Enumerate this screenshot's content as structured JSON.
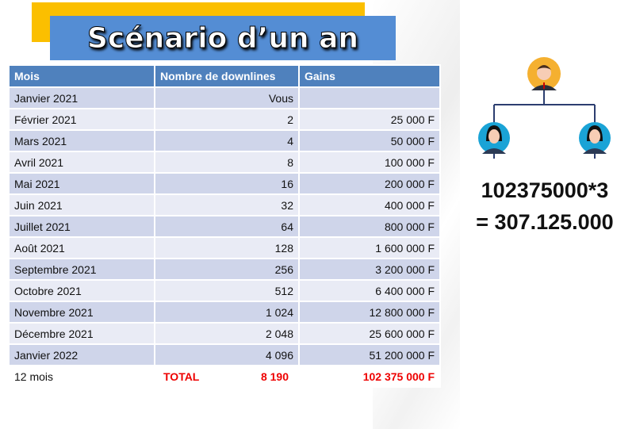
{
  "title": "Scénario d’un an",
  "table": {
    "headers": [
      "Mois",
      "Nombre de downlines",
      "Gains"
    ],
    "rows": [
      [
        "Janvier 2021",
        "Vous",
        ""
      ],
      [
        "Février 2021",
        "2",
        "25 000 F"
      ],
      [
        "Mars 2021",
        "4",
        "50 000 F"
      ],
      [
        "Avril 2021",
        "8",
        "100 000 F"
      ],
      [
        "Mai 2021",
        "16",
        "200 000 F"
      ],
      [
        "Juin 2021",
        "32",
        "400 000 F"
      ],
      [
        "Juillet 2021",
        "64",
        "800 000 F"
      ],
      [
        "Août 2021",
        "128",
        "1 600 000 F"
      ],
      [
        "Septembre 2021",
        "256",
        "3 200 000 F"
      ],
      [
        "Octobre 2021",
        "512",
        "6 400 000 F"
      ],
      [
        "Novembre 2021",
        "1 024",
        "12 800 000 F"
      ],
      [
        "Décembre 2021",
        "2 048",
        "25 600 000 F"
      ],
      [
        "Janvier 2022",
        "4 096",
        "51 200 000 F"
      ]
    ],
    "total": {
      "label": "12 mois",
      "total_label": "TOTAL",
      "downlines": "8 190",
      "gains": "102 375 000 F"
    }
  },
  "formula": {
    "line1": "102375000*3",
    "line2": "= 307.125.000"
  },
  "colors": {
    "header": "#4f81bd",
    "title_box": "#548dd4",
    "accent_bar": "#fbbf00",
    "total": "#ee0000"
  }
}
